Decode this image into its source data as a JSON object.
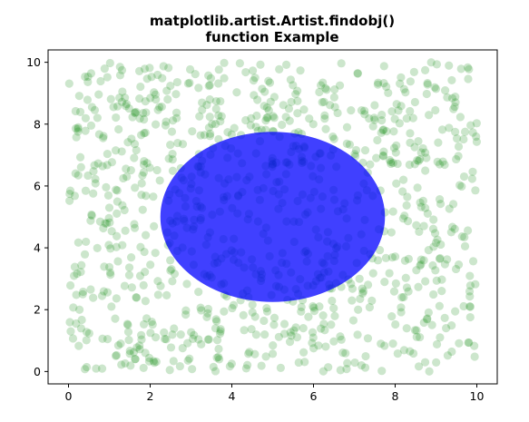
{
  "chart_data": {
    "type": "scatter",
    "title_lines": [
      "matplotlib.artist.Artist.findobj()",
      "function Example"
    ],
    "xlabel": "",
    "ylabel": "",
    "xlim": [
      -0.5,
      10.5
    ],
    "ylim": [
      -0.4,
      10.4
    ],
    "xticks": [
      0,
      2,
      4,
      6,
      8,
      10
    ],
    "yticks": [
      0,
      2,
      4,
      6,
      8,
      10
    ],
    "grid": false,
    "colors": {
      "points": "#008000",
      "ellipse": "#0000ff",
      "frame": "#000000"
    },
    "series": [
      {
        "kind": "scatter",
        "count": 1000,
        "color": "#008000",
        "alpha": 0.2,
        "x_range": [
          0,
          10
        ],
        "y_range": [
          0,
          10
        ]
      }
    ],
    "ellipse": {
      "center": [
        5,
        5
      ],
      "width": 5.5,
      "height": 5.5,
      "color": "#0000ff",
      "alpha": 0.75
    }
  }
}
